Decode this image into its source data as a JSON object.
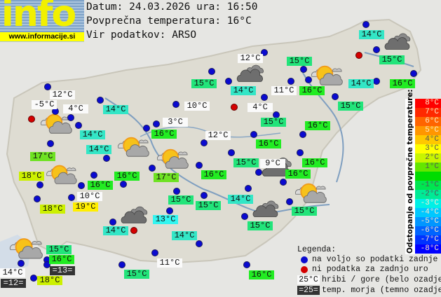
{
  "header": {
    "date_line": "Datum: 24.03.2026 ura: 16:50",
    "avg_line": "Povprečna temperatura: 16°C",
    "source_line": "Vir podatkov: ARSO"
  },
  "logo": {
    "word": "info",
    "url": "www.informacije.si"
  },
  "temp_colors": {
    "13°C": "#33f5f0",
    "14°C": "#33e6c6",
    "15°C": "#22e47a",
    "16°C": "#22ec22",
    "17°C": "#6ee222",
    "18°C": "#ccf000",
    "19°C": "#ffee00"
  },
  "stations": [
    {
      "temp": "14°C",
      "kind": "valley"
    },
    {
      "temp": "12°C",
      "kind": "mountain"
    },
    {
      "temp": "15°C",
      "kind": "valley"
    },
    {
      "temp": "15°C",
      "kind": "valley"
    },
    {
      "temp": "15°C",
      "kind": "valley"
    },
    {
      "temp": "14°C",
      "kind": "valley"
    },
    {
      "temp": "11°C",
      "kind": "mountain"
    },
    {
      "temp": "16°C",
      "kind": "valley"
    },
    {
      "temp": "14°C",
      "kind": "valley"
    },
    {
      "temp": "16°C",
      "kind": "valley"
    },
    {
      "temp": "15°C",
      "kind": "valley"
    },
    {
      "temp": "12°C",
      "kind": "mountain"
    },
    {
      "temp": "-5°C",
      "kind": "mountain"
    },
    {
      "temp": "4°C",
      "kind": "mountain"
    },
    {
      "temp": "14°C",
      "kind": "valley"
    },
    {
      "temp": "10°C",
      "kind": "mountain"
    },
    {
      "temp": "4°C",
      "kind": "mountain"
    },
    {
      "temp": "3°C",
      "kind": "mountain"
    },
    {
      "temp": "15°C",
      "kind": "valley"
    },
    {
      "temp": "16°C",
      "kind": "valley"
    },
    {
      "temp": "16°C",
      "kind": "valley"
    },
    {
      "temp": "12°C",
      "kind": "mountain"
    },
    {
      "temp": "14°C",
      "kind": "valley"
    },
    {
      "temp": "14°C",
      "kind": "valley"
    },
    {
      "temp": "16°C",
      "kind": "valley"
    },
    {
      "temp": "17°C",
      "kind": "valley"
    },
    {
      "temp": "15°C",
      "kind": "valley"
    },
    {
      "temp": "9°C",
      "kind": "mountain"
    },
    {
      "temp": "16°C",
      "kind": "valley"
    },
    {
      "temp": "16°C",
      "kind": "valley"
    },
    {
      "temp": "17°C",
      "kind": "valley"
    },
    {
      "temp": "16°C",
      "kind": "valley"
    },
    {
      "temp": "16°C",
      "kind": "valley"
    },
    {
      "temp": "18°C",
      "kind": "valley"
    },
    {
      "temp": "16°C",
      "kind": "valley"
    },
    {
      "temp": "10°C",
      "kind": "mountain"
    },
    {
      "temp": "15°C",
      "kind": "valley"
    },
    {
      "temp": "15°C",
      "kind": "valley"
    },
    {
      "temp": "14°C",
      "kind": "valley"
    },
    {
      "temp": "15°C",
      "kind": "valley"
    },
    {
      "temp": "18°C",
      "kind": "valley"
    },
    {
      "temp": "19°C",
      "kind": "valley"
    },
    {
      "temp": "13°C",
      "kind": "valley"
    },
    {
      "temp": "15°C",
      "kind": "valley"
    },
    {
      "temp": "14°C",
      "kind": "valley"
    },
    {
      "temp": "14°C",
      "kind": "valley"
    },
    {
      "temp": "15°C",
      "kind": "valley"
    },
    {
      "temp": "16°C",
      "kind": "valley"
    },
    {
      "temp": "=13=",
      "kind": "sea"
    },
    {
      "temp": "14°C",
      "kind": "mountain"
    },
    {
      "temp": "=12=",
      "kind": "sea"
    },
    {
      "temp": "18°C",
      "kind": "valley"
    },
    {
      "temp": "11°C",
      "kind": "mountain"
    },
    {
      "temp": "15°C",
      "kind": "valley"
    },
    {
      "temp": "16°C",
      "kind": "valley"
    }
  ],
  "marker_colors": {
    "available": "#0a0ad0",
    "missing": "#d40000"
  },
  "markers": [
    "available",
    "available",
    "available",
    "available",
    "available",
    "available",
    "available",
    "available",
    "available",
    "available",
    "available",
    "available",
    "available",
    "available",
    "available",
    "available",
    "available",
    "available",
    "available",
    "available",
    "available",
    "available",
    "available",
    "available",
    "available",
    "available",
    "available",
    "available",
    "available",
    "available",
    "available",
    "available",
    "available",
    "available",
    "available",
    "available",
    "available",
    "available",
    "available",
    "available",
    "available",
    "available",
    "available",
    "available",
    "available",
    "available",
    "available",
    "available",
    "available",
    "available",
    "available",
    "available",
    "available",
    "missing",
    "missing",
    "missing",
    "missing"
  ],
  "weather_icons": [
    "overcast",
    "partly-cloudy",
    "overcast",
    "partly-cloudy",
    "partly-cloudy",
    "partly-cloudy",
    "partly-cloudy",
    "overcast",
    "partly-cloudy",
    "overcast",
    "overcast",
    "partly-cloudy"
  ],
  "scale": {
    "title": "Odstopanje od povprečne temperature:",
    "steps": [
      {
        "label": "8°C",
        "color": "#ff0000"
      },
      {
        "label": "7°C",
        "color": "#ff2800"
      },
      {
        "label": "6°C",
        "color": "#ff6400"
      },
      {
        "label": "5°C",
        "color": "#ff9600"
      },
      {
        "label": "4°C",
        "color": "#ffc800"
      },
      {
        "label": "3°C",
        "color": "#ffff00"
      },
      {
        "label": "2°C",
        "color": "#c8f500"
      },
      {
        "label": "1°C",
        "color": "#64e600"
      },
      {
        "label": "",
        "color": "#00dc00"
      },
      {
        "label": "-1°C",
        "color": "#00e650"
      },
      {
        "label": "-2°C",
        "color": "#00eb96"
      },
      {
        "label": "-3°C",
        "color": "#00f0e6"
      },
      {
        "label": "-4°C",
        "color": "#00c8ff"
      },
      {
        "label": "-5°C",
        "color": "#0096ff"
      },
      {
        "label": "-6°C",
        "color": "#0064ff"
      },
      {
        "label": "-7°C",
        "color": "#0032ff"
      },
      {
        "label": "-8°C",
        "color": "#0000ff"
      }
    ]
  },
  "legend": {
    "title": "Legenda:",
    "available": "na voljo so podatki zadnje ure",
    "missing": "ni podatka za zadnjo uro",
    "mountain_sample": "25°C",
    "mountain_text": "hribi / gore (belo ozadje)",
    "sea_sample": "=25=",
    "sea_text": "temp. morja (temno ozadje)"
  }
}
